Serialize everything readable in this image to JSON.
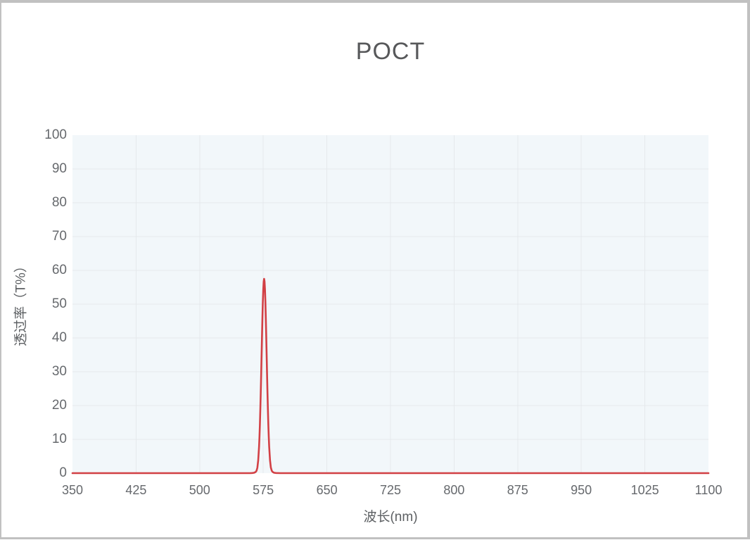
{
  "frame": {
    "border_color": "#c1c1c1",
    "background": "#ffffff"
  },
  "chart_data": {
    "type": "line",
    "title": "POCT",
    "xlabel": "波长(nm)",
    "ylabel": "透过率（T%）",
    "xlim": [
      350,
      1100
    ],
    "ylim": [
      0,
      100
    ],
    "x_ticks": [
      350,
      425,
      500,
      575,
      650,
      725,
      800,
      875,
      950,
      1025,
      1100
    ],
    "y_ticks": [
      0,
      10,
      20,
      30,
      40,
      50,
      60,
      70,
      80,
      90,
      100
    ],
    "grid": true,
    "legend_position": "none",
    "plot_background": "#f2f7fa",
    "grid_color": "#e5e9ec",
    "tick_label_color": "#66696d",
    "axis_title_color": "#5d6063",
    "title_color": "#57585a",
    "series": [
      {
        "name": "POCT",
        "color": "#d24045",
        "line_width": 2.6,
        "peak": {
          "center_nm": 576,
          "height_T_percent": 57.5,
          "fwhm_nm": 7
        },
        "points": [
          [
            350,
            0
          ],
          [
            400,
            0
          ],
          [
            450,
            0
          ],
          [
            500,
            0
          ],
          [
            540,
            0
          ],
          [
            555,
            0
          ],
          [
            560,
            0.02
          ],
          [
            562,
            0.05
          ],
          [
            564,
            0.1
          ],
          [
            565,
            0.2
          ],
          [
            566,
            0.35
          ],
          [
            567,
            0.7
          ],
          [
            568,
            1.6
          ],
          [
            569,
            3.8
          ],
          [
            570,
            7.8
          ],
          [
            570.5,
            10.7
          ],
          [
            571,
            14.3
          ],
          [
            571.5,
            18.7
          ],
          [
            572,
            23.6
          ],
          [
            572.5,
            29.1
          ],
          [
            573,
            34.9
          ],
          [
            573.5,
            40.6
          ],
          [
            574,
            46
          ],
          [
            574.5,
            50.7
          ],
          [
            575,
            54.4
          ],
          [
            575.5,
            56.7
          ],
          [
            576,
            57.5
          ],
          [
            576.5,
            56.7
          ],
          [
            577,
            54.4
          ],
          [
            577.5,
            50.7
          ],
          [
            578,
            46
          ],
          [
            578.5,
            40.6
          ],
          [
            579,
            34.9
          ],
          [
            579.5,
            29.1
          ],
          [
            580,
            23.6
          ],
          [
            580.5,
            18.7
          ],
          [
            581,
            14.3
          ],
          [
            581.5,
            10.7
          ],
          [
            582,
            7.8
          ],
          [
            583,
            3.8
          ],
          [
            584,
            1.6
          ],
          [
            585,
            0.7
          ],
          [
            586,
            0.35
          ],
          [
            587,
            0.2
          ],
          [
            588,
            0.1
          ],
          [
            590,
            0.05
          ],
          [
            595,
            0
          ],
          [
            600,
            0
          ],
          [
            650,
            0
          ],
          [
            700,
            0
          ],
          [
            750,
            0
          ],
          [
            800,
            0
          ],
          [
            850,
            0
          ],
          [
            900,
            0
          ],
          [
            950,
            0
          ],
          [
            1000,
            0
          ],
          [
            1050,
            0
          ],
          [
            1100,
            0
          ]
        ]
      }
    ]
  }
}
